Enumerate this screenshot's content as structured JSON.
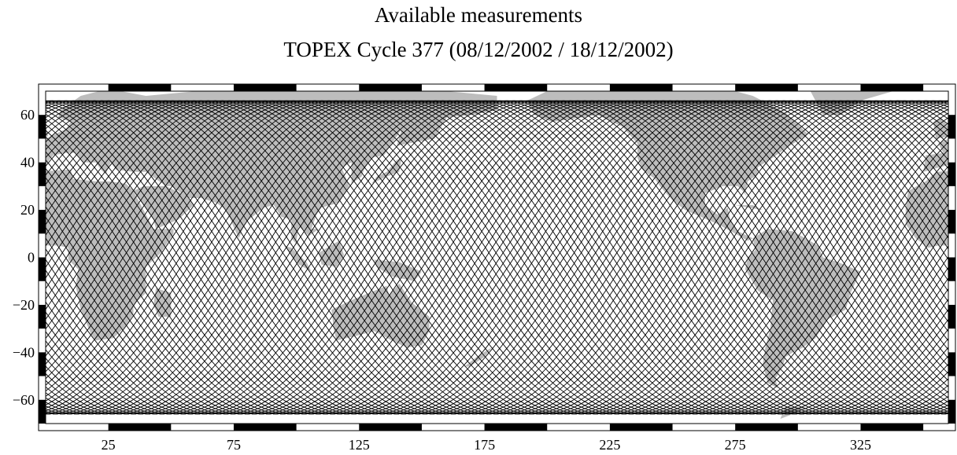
{
  "title": "Available measurements",
  "subtitle": "TOPEX Cycle 377 (08/12/2002 / 18/12/2002)",
  "map": {
    "projection": "equirectangular",
    "longitude_range": [
      0,
      360
    ],
    "latitude_range": [
      -70,
      70
    ],
    "x_ticks": [
      25,
      75,
      125,
      175,
      225,
      275,
      325
    ],
    "y_ticks": [
      60,
      40,
      20,
      0,
      -20,
      -40,
      -60
    ],
    "y_tick_labels": [
      "60",
      "40",
      "20",
      "0",
      "−20",
      "−40",
      "−60"
    ],
    "track_latitude_limit": 66,
    "frame_border_step_deg": 25,
    "colors": {
      "ocean": "#ffffff",
      "land": "#bdbdbd",
      "tracks": "#000000",
      "frame": "#000000"
    }
  }
}
